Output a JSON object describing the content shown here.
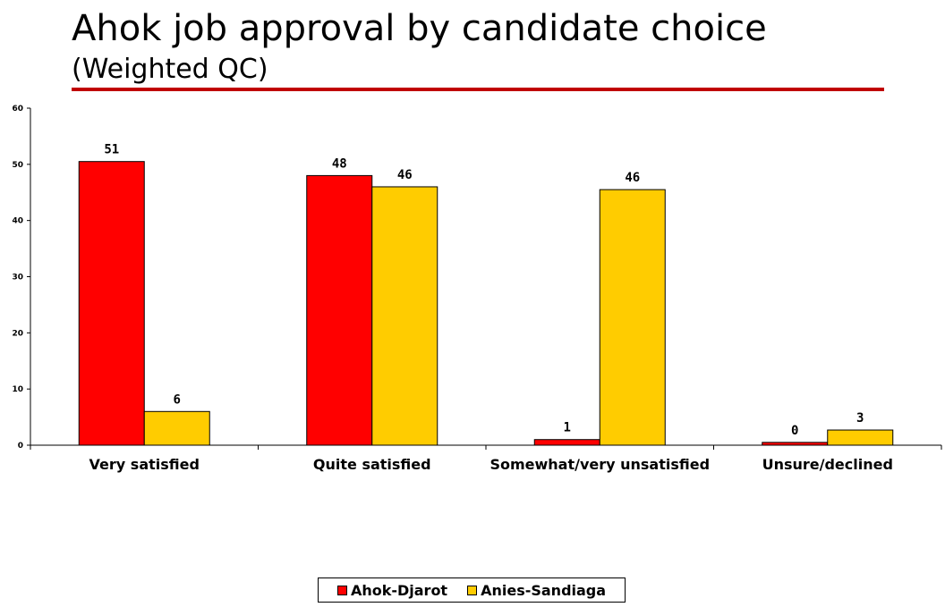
{
  "header": {
    "title": "Ahok job approval by candidate choice",
    "subtitle": "(Weighted QC)"
  },
  "colors": {
    "rule": "#c00000",
    "series": [
      "#ff0000",
      "#ffcc00"
    ]
  },
  "chart_data": {
    "type": "bar",
    "title": "Ahok job approval by candidate choice",
    "subtitle": "(Weighted QC)",
    "categories": [
      "Very satisfied",
      "Quite satisfied",
      "Somewhat/very unsatisfied",
      "Unsure/declined"
    ],
    "series": [
      {
        "name": "Ahok-Djarot",
        "values": [
          50.5,
          48,
          1,
          0.5
        ],
        "labels": [
          "51",
          "48",
          "1",
          "0"
        ]
      },
      {
        "name": "Anies-Sandiaga",
        "values": [
          6,
          46,
          45.5,
          2.7
        ],
        "labels": [
          "6",
          "46",
          "46",
          "3"
        ]
      }
    ],
    "ylim": [
      0,
      60
    ],
    "yticks": [
      0,
      10,
      20,
      30,
      40,
      50,
      60
    ],
    "grid": false,
    "legend": "bottom-center"
  }
}
